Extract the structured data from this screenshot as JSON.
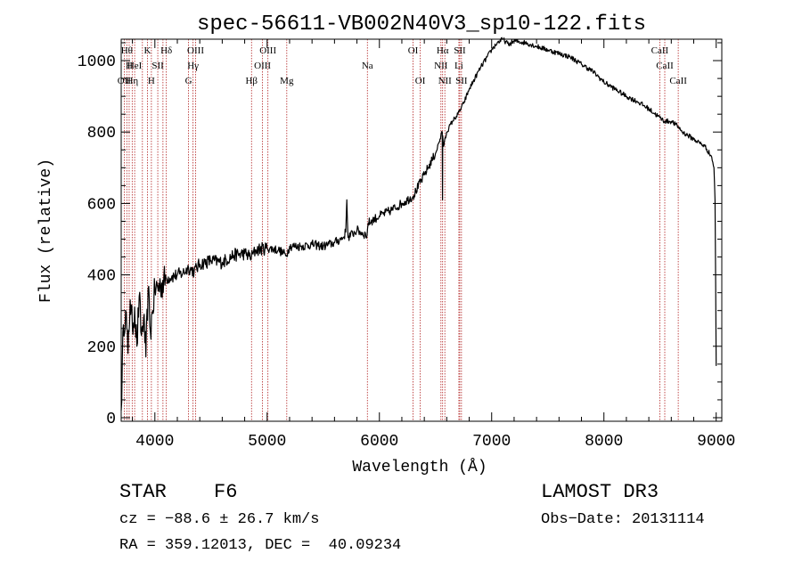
{
  "chart_data": {
    "type": "line",
    "title": "spec-56611-VB002N40V3_sp10-122.fits",
    "xlabel": "Wavelength (Å)",
    "ylabel": "Flux (relative)",
    "xlim": [
      3700,
      9050
    ],
    "ylim": [
      -10,
      1060
    ],
    "xticks": [
      4000,
      5000,
      6000,
      7000,
      8000,
      9000
    ],
    "yticks": [
      0,
      200,
      400,
      600,
      800,
      1000
    ],
    "xtick_labels": [
      "4000",
      "5000",
      "6000",
      "7000",
      "8000",
      "9000"
    ],
    "ytick_labels": [
      "0",
      "200",
      "400",
      "600",
      "800",
      "1000"
    ],
    "series": [
      {
        "name": "flux",
        "x": [
          3700,
          3720,
          3740,
          3760,
          3780,
          3800,
          3820,
          3840,
          3860,
          3880,
          3900,
          3920,
          3940,
          3960,
          3980,
          4000,
          4050,
          4100,
          4150,
          4200,
          4250,
          4300,
          4350,
          4400,
          4500,
          4600,
          4700,
          4800,
          4860,
          4900,
          5000,
          5100,
          5170,
          5200,
          5300,
          5400,
          5500,
          5600,
          5680,
          5700,
          5710,
          5720,
          5800,
          5890,
          5900,
          6000,
          6100,
          6200,
          6300,
          6400,
          6500,
          6560,
          6562,
          6564,
          6570,
          6600,
          6650,
          6700,
          6750,
          6800,
          6900,
          7000,
          7050,
          7100,
          7150,
          7200,
          7300,
          7400,
          7500,
          7600,
          7700,
          7800,
          7900,
          8000,
          8100,
          8200,
          8300,
          8400,
          8498,
          8542,
          8600,
          8662,
          8700,
          8800,
          8900,
          8960,
          8980,
          8990,
          9000
        ],
        "y": [
          20,
          260,
          300,
          180,
          330,
          250,
          310,
          200,
          340,
          230,
          280,
          170,
          360,
          240,
          300,
          360,
          370,
          390,
          395,
          400,
          405,
          420,
          410,
          430,
          440,
          435,
          455,
          460,
          450,
          470,
          475,
          470,
          455,
          480,
          480,
          485,
          480,
          490,
          505,
          520,
          610,
          505,
          525,
          510,
          545,
          565,
          580,
          600,
          620,
          680,
          740,
          800,
          610,
          790,
          760,
          800,
          830,
          850,
          880,
          920,
          980,
          1030,
          1050,
          1060,
          1045,
          1055,
          1050,
          1040,
          1030,
          1020,
          1010,
          990,
          970,
          940,
          920,
          900,
          885,
          865,
          840,
          830,
          830,
          815,
          800,
          780,
          760,
          730,
          700,
          610,
          145
        ]
      }
    ],
    "line_markers": [
      {
        "x": 3727,
        "label": "OII",
        "row": 2
      },
      {
        "x": 3750,
        "label": "Hθ",
        "row": 0
      },
      {
        "x": 3771,
        "label": "H",
        "row": 1
      },
      {
        "x": 3798,
        "label": "Hη",
        "row": 2
      },
      {
        "x": 3820,
        "label": "HeI",
        "row": 1
      },
      {
        "x": 3889,
        "label": "",
        "row": 0
      },
      {
        "x": 3934,
        "label": "K",
        "row": 0
      },
      {
        "x": 3969,
        "label": "H",
        "row": 2
      },
      {
        "x": 4026,
        "label": "SII",
        "row": 1
      },
      {
        "x": 4072,
        "label": "",
        "row": 0
      },
      {
        "x": 4102,
        "label": "Hδ",
        "row": 0
      },
      {
        "x": 4300,
        "label": "G",
        "row": 2
      },
      {
        "x": 4340,
        "label": "Hγ",
        "row": 1
      },
      {
        "x": 4363,
        "label": "OIII",
        "row": 0
      },
      {
        "x": 4861,
        "label": "Hβ",
        "row": 2
      },
      {
        "x": 4959,
        "label": "OIII",
        "row": 1
      },
      {
        "x": 5007,
        "label": "OIII",
        "row": 0
      },
      {
        "x": 5175,
        "label": "Mg",
        "row": 2
      },
      {
        "x": 5893,
        "label": "Na",
        "row": 1
      },
      {
        "x": 6300,
        "label": "OI",
        "row": 0
      },
      {
        "x": 6364,
        "label": "OI",
        "row": 2
      },
      {
        "x": 6548,
        "label": "NII",
        "row": 1
      },
      {
        "x": 6563,
        "label": "Hα",
        "row": 0
      },
      {
        "x": 6583,
        "label": "NII",
        "row": 2
      },
      {
        "x": 6708,
        "label": "Li",
        "row": 1
      },
      {
        "x": 6716,
        "label": "SII",
        "row": 0
      },
      {
        "x": 6731,
        "label": "SII",
        "row": 2
      },
      {
        "x": 8498,
        "label": "CaII",
        "row": 0
      },
      {
        "x": 8542,
        "label": "CaII",
        "row": 1
      },
      {
        "x": 8662,
        "label": "CaII",
        "row": 2
      }
    ]
  },
  "info": {
    "object_type": "STAR",
    "subclass": "F6",
    "survey": "LAMOST DR3",
    "cz": "cz = −88.6 ± 26.7 km/s",
    "obs_date": "Obs−Date: 20131114",
    "coords": "RA = 359.12013, DEC =  40.09234"
  }
}
